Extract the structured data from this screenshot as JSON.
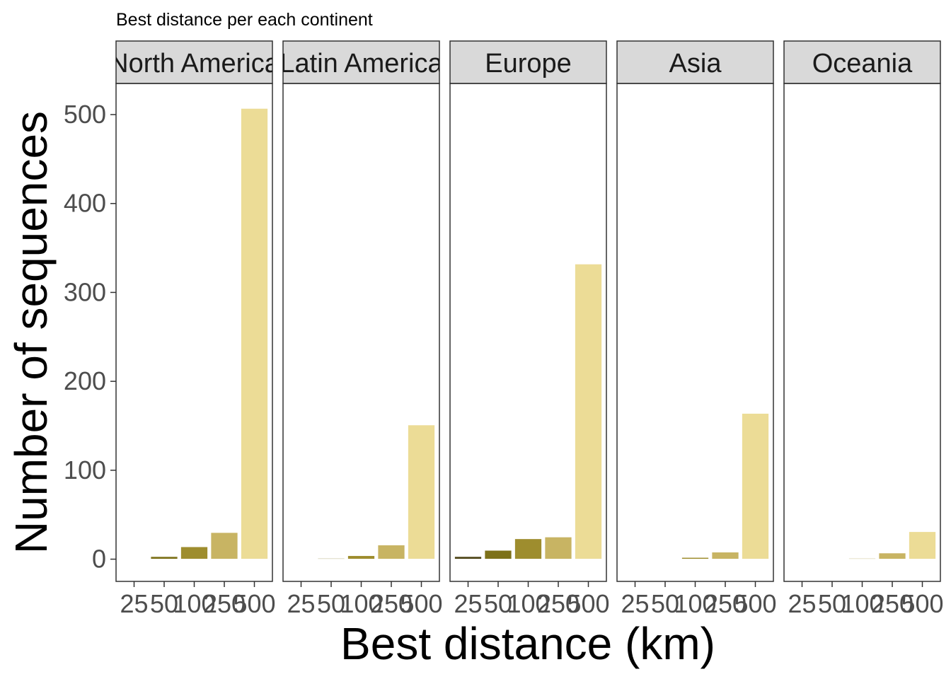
{
  "chart_data": {
    "type": "bar",
    "title": "Best distance per each continent",
    "xlabel": "Best distance (km)",
    "ylabel": "Number of sequences",
    "categories": [
      "25",
      "50",
      "100",
      "250",
      "500"
    ],
    "ylim": [
      -25,
      535
    ],
    "y_ticks": [
      0,
      100,
      200,
      300,
      400,
      500
    ],
    "colors": [
      "#4d4516",
      "#7d7119",
      "#9e8d2e",
      "#c8b463",
      "#ecdc96"
    ],
    "panels": [
      {
        "name": "North America",
        "values": [
          0,
          3,
          14,
          30,
          507
        ]
      },
      {
        "name": "Latin America",
        "values": [
          0,
          1,
          4,
          16,
          151
        ]
      },
      {
        "name": "Europe",
        "values": [
          3,
          10,
          23,
          25,
          332
        ]
      },
      {
        "name": "Asia",
        "values": [
          0,
          0,
          2,
          8,
          164
        ]
      },
      {
        "name": "Oceania",
        "values": [
          0,
          0,
          1,
          7,
          31
        ]
      }
    ],
    "grid": false,
    "legend": "none"
  }
}
